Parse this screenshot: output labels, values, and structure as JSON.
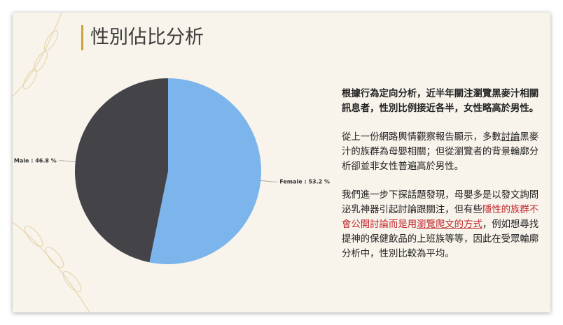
{
  "header": {
    "title": "性別佔比分析"
  },
  "chart_data": {
    "type": "pie",
    "categories": [
      "Female",
      "Male"
    ],
    "values": [
      53.2,
      46.8
    ],
    "value_labels": [
      "Female : 53.2 %",
      "Male : 46.8 %"
    ],
    "colors": [
      "#7cb5ec",
      "#434348"
    ]
  },
  "text": {
    "paragraphs": [
      [
        {
          "text": "根據行為定向分析，近半年關注瀏覽黑麥汁相關訊息者，性別比例接近各半，女性略高於男性。",
          "style": "bold"
        }
      ],
      [
        {
          "text": "從上一份網路輿情觀察報告顯示，多數",
          "style": "plain"
        },
        {
          "text": "討論",
          "style": "underline"
        },
        {
          "text": "黑麥汁的族群為母嬰相關；但從瀏覽者的背景輪廓分析卻並非女性普遍高於男性。",
          "style": "plain"
        }
      ],
      [
        {
          "text": "我們進一步下探話題發現，母嬰多是以發文詢問泌乳神器引起討論跟關注，但有些",
          "style": "plain"
        },
        {
          "text": "隱性的族群不會公開討論而是用",
          "style": "red"
        },
        {
          "text": "瀏覽爬文的方式",
          "style": "red-underline"
        },
        {
          "text": "，例如想尋找提神的保健飲品的上班族等等，因此在受眾輪廓分析中，性別比較為平均。",
          "style": "plain"
        }
      ]
    ]
  }
}
